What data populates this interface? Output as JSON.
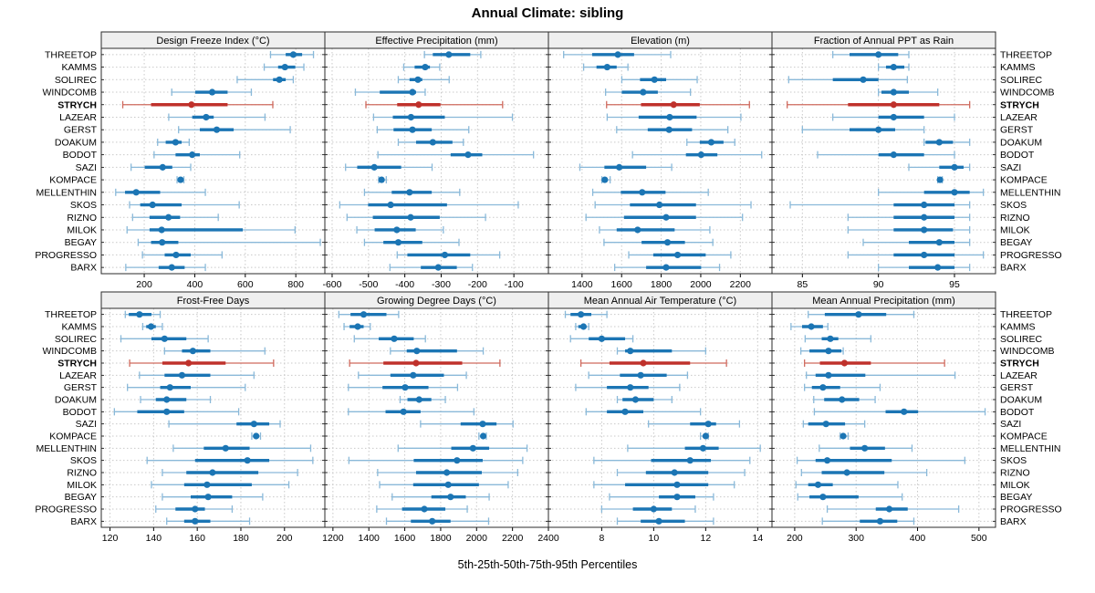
{
  "title": "Annual Climate: sibling",
  "xlabel": "5th-25th-50th-75th-95th Percentiles",
  "colors": {
    "blue": "#1b75b4",
    "blue_light": "#8ab9d9",
    "red": "#bf312b",
    "red_light": "#cf6a5e",
    "header_bg": "#efefef",
    "grid": "#c9c9c9",
    "border": "#2b2b2b",
    "text": "#000000"
  },
  "chart_data": {
    "type": "scatter",
    "subtype": "multi-panel percentile dotplot (whisker=5th-95th, bar=25th-75th, dot=50th)",
    "title": "Annual Climate: sibling",
    "xlabel": "5th-25th-50th-75th-95th Percentiles",
    "legend_position": "none",
    "grid": "dashed",
    "percentiles": [
      5,
      25,
      50,
      75,
      95
    ],
    "highlight_site": "STRYCH",
    "sites": [
      "THREETOP",
      "KAMMS",
      "SOLIREC",
      "WINDCOMB",
      "STRYCH",
      "LAZEAR",
      "GERST",
      "DOAKUM",
      "BODOT",
      "SAZI",
      "KOMPACE",
      "MELLENTHIN",
      "SKOS",
      "RIZNO",
      "MILOK",
      "BEGAY",
      "PROGRESSO",
      "BARX"
    ],
    "panels": [
      {
        "title": "Design Freeze Index (°C)",
        "row": 0,
        "col": 0,
        "xlim": [
          30,
          915
        ],
        "ticks": [
          200,
          400,
          600,
          800
        ],
        "values": [
          [
            700,
            760,
            790,
            825,
            870
          ],
          [
            675,
            730,
            757,
            798,
            832
          ],
          [
            568,
            710,
            735,
            760,
            790
          ],
          [
            309,
            402,
            469,
            530,
            624
          ],
          [
            115,
            227,
            387,
            530,
            709
          ],
          [
            297,
            390,
            445,
            475,
            678
          ],
          [
            336,
            420,
            487,
            554,
            778
          ],
          [
            253,
            285,
            324,
            348,
            378
          ],
          [
            239,
            324,
            390,
            420,
            578
          ],
          [
            148,
            202,
            273,
            311,
            384
          ],
          [
            330,
            338,
            344,
            350,
            357
          ],
          [
            87,
            124,
            168,
            263,
            442
          ],
          [
            142,
            184,
            233,
            348,
            576
          ],
          [
            154,
            221,
            296,
            342,
            493
          ],
          [
            132,
            221,
            269,
            590,
            797
          ],
          [
            176,
            227,
            271,
            335,
            897
          ],
          [
            193,
            281,
            326,
            384,
            508
          ],
          [
            127,
            257,
            309,
            360,
            442
          ]
        ]
      },
      {
        "title": "Effective Precipitation (mm)",
        "row": 0,
        "col": 1,
        "xlim": [
          -620,
          -5
        ],
        "ticks": [
          -600,
          -500,
          -400,
          -300,
          -200,
          -100
        ],
        "values": [
          [
            -346,
            -323,
            -279,
            -220,
            -191
          ],
          [
            -403,
            -373,
            -344,
            -331,
            -304
          ],
          [
            -418,
            -387,
            -364,
            -352,
            -278
          ],
          [
            -536,
            -469,
            -379,
            -369,
            -344
          ],
          [
            -507,
            -421,
            -362,
            -302,
            -131
          ],
          [
            -486,
            -433,
            -383,
            -290,
            -104
          ],
          [
            -476,
            -431,
            -379,
            -326,
            -224
          ],
          [
            -418,
            -369,
            -323,
            -269,
            -239
          ],
          [
            -474,
            -274,
            -226,
            -187,
            -46
          ],
          [
            -563,
            -531,
            -484,
            -410,
            -325
          ],
          [
            -472,
            -468,
            -464,
            -458,
            -451
          ],
          [
            -511,
            -436,
            -387,
            -326,
            -249
          ],
          [
            -579,
            -501,
            -439,
            -284,
            -88
          ],
          [
            -559,
            -488,
            -384,
            -304,
            -178
          ],
          [
            -532,
            -483,
            -422,
            -370,
            -294
          ],
          [
            -511,
            -459,
            -418,
            -352,
            -251
          ],
          [
            -421,
            -393,
            -290,
            -220,
            -139
          ],
          [
            -441,
            -356,
            -308,
            -257,
            -214
          ]
        ]
      },
      {
        "title": "Elevation (m)",
        "row": 0,
        "col": 2,
        "xlim": [
          1230,
          2360
        ],
        "ticks": [
          1400,
          1600,
          1800,
          2000,
          2200
        ],
        "values": [
          [
            1307,
            1451,
            1581,
            1663,
            1848
          ],
          [
            1408,
            1473,
            1527,
            1575,
            1632
          ],
          [
            1601,
            1693,
            1766,
            1825,
            1982
          ],
          [
            1519,
            1601,
            1709,
            1783,
            1948
          ],
          [
            1524,
            1698,
            1863,
            1995,
            2246
          ],
          [
            1527,
            1686,
            1843,
            1979,
            2203
          ],
          [
            1575,
            1732,
            1840,
            1956,
            2137
          ],
          [
            1930,
            1995,
            2053,
            2115,
            2172
          ],
          [
            1655,
            1925,
            2002,
            2084,
            2308
          ],
          [
            1389,
            1513,
            1588,
            1724,
            1853
          ],
          [
            1500,
            1508,
            1515,
            1528,
            1542
          ],
          [
            1454,
            1596,
            1704,
            1822,
            2038
          ],
          [
            1466,
            1642,
            1791,
            1976,
            2254
          ],
          [
            1420,
            1612,
            1825,
            1976,
            2211
          ],
          [
            1488,
            1575,
            1681,
            1868,
            2046
          ],
          [
            1511,
            1701,
            1832,
            1920,
            2061
          ],
          [
            1636,
            1760,
            1883,
            2025,
            2152
          ],
          [
            1565,
            1724,
            1825,
            2002,
            2095
          ]
        ]
      },
      {
        "title": "Fraction of Annual PPT as Rain",
        "row": 0,
        "col": 3,
        "xlim": [
          83,
          97.7
        ],
        "ticks": [
          85,
          90,
          95
        ],
        "values": [
          [
            87.0,
            88.1,
            90.0,
            91.3,
            92.0
          ],
          [
            90.0,
            90.5,
            91.0,
            91.7,
            92.0
          ],
          [
            84.1,
            87.0,
            89.0,
            90.0,
            91.9
          ],
          [
            90.0,
            90.2,
            91.0,
            92.0,
            93.9
          ],
          [
            84.0,
            88.0,
            91.0,
            94.0,
            96.0
          ],
          [
            87.0,
            90.0,
            91.0,
            93.0,
            95.0
          ],
          [
            85.0,
            88.1,
            90.0,
            91.1,
            93.0
          ],
          [
            93.0,
            93.1,
            94.0,
            94.9,
            96.0
          ],
          [
            86.0,
            90.0,
            91.0,
            93.0,
            95.0
          ],
          [
            92.0,
            94.0,
            95.0,
            95.6,
            96.0
          ],
          [
            93.9,
            94.0,
            94.05,
            94.1,
            94.2
          ],
          [
            90.0,
            93.0,
            95.0,
            96.0,
            96.9
          ],
          [
            84.2,
            91.0,
            93.0,
            95.0,
            96.0
          ],
          [
            88.0,
            91.0,
            93.0,
            95.0,
            96.0
          ],
          [
            88.0,
            91.0,
            93.0,
            94.9,
            96.0
          ],
          [
            89.0,
            92.0,
            94.0,
            95.0,
            96.0
          ],
          [
            88.0,
            91.0,
            93.0,
            95.0,
            96.9
          ],
          [
            90.0,
            92.0,
            93.9,
            95.0,
            96.0
          ]
        ]
      },
      {
        "title": "Frost-Free Days",
        "row": 1,
        "col": 0,
        "xlim": [
          116,
          218.5
        ],
        "ticks": [
          120,
          140,
          160,
          180,
          200
        ],
        "values": [
          [
            127,
            128.6,
            133.5,
            139,
            143
          ],
          [
            135,
            136.6,
            138.8,
            141,
            144
          ],
          [
            125,
            139,
            145,
            155,
            165
          ],
          [
            145,
            153,
            158,
            166,
            191
          ],
          [
            129,
            144,
            156,
            173,
            195
          ],
          [
            133.5,
            145,
            153,
            166,
            186
          ],
          [
            128,
            143,
            147.5,
            157,
            182
          ],
          [
            134,
            141,
            146,
            155,
            166
          ],
          [
            122,
            132.5,
            146,
            154,
            179
          ],
          [
            147,
            178,
            186,
            193,
            198
          ],
          [
            185,
            186,
            187,
            188,
            189
          ],
          [
            149,
            163,
            173,
            184,
            212
          ],
          [
            137,
            159,
            183,
            193,
            213
          ],
          [
            144,
            155,
            167,
            188,
            206
          ],
          [
            139,
            154,
            164.5,
            185,
            202
          ],
          [
            144,
            157,
            165,
            176,
            190
          ],
          [
            141,
            150,
            159,
            163.5,
            176
          ],
          [
            146,
            154,
            159,
            166,
            184
          ]
        ]
      },
      {
        "title": "Growing Degree Days (°C)",
        "row": 1,
        "col": 1,
        "xlim": [
          1155,
          2400
        ],
        "ticks": [
          1200,
          1400,
          1600,
          1800,
          2000,
          2200,
          2400
        ],
        "values": [
          [
            1233,
            1298,
            1371,
            1498,
            1566
          ],
          [
            1262,
            1293,
            1338,
            1371,
            1408
          ],
          [
            1319,
            1455,
            1541,
            1650,
            1715
          ],
          [
            1520,
            1611,
            1667,
            1891,
            2037
          ],
          [
            1293,
            1481,
            1663,
            1920,
            2130
          ],
          [
            1342,
            1520,
            1647,
            1818,
            1943
          ],
          [
            1286,
            1476,
            1602,
            1732,
            1894
          ],
          [
            1574,
            1615,
            1680,
            1748,
            1826
          ],
          [
            1286,
            1493,
            1593,
            1688,
            1985
          ],
          [
            1688,
            1911,
            2034,
            2111,
            2203
          ],
          [
            2013,
            2025,
            2037,
            2046,
            2054
          ],
          [
            1563,
            1859,
            1980,
            2070,
            2281
          ],
          [
            1289,
            1650,
            1891,
            2034,
            2257
          ],
          [
            1449,
            1663,
            1834,
            2029,
            2229
          ],
          [
            1460,
            1647,
            1842,
            2013,
            2176
          ],
          [
            1530,
            1748,
            1855,
            1940,
            2070
          ],
          [
            1444,
            1585,
            1709,
            1826,
            1948
          ],
          [
            1498,
            1634,
            1753,
            1855,
            2067
          ]
        ]
      },
      {
        "title": "Mean Annual Air Temperature (°C)",
        "row": 1,
        "col": 2,
        "xlim": [
          5.95,
          14.55
        ],
        "ticks": [
          8,
          10,
          12,
          14
        ],
        "values": [
          [
            6.6,
            6.8,
            7.2,
            7.6,
            8.2
          ],
          [
            7.0,
            7.1,
            7.3,
            7.4,
            7.5
          ],
          [
            6.8,
            7.5,
            8.0,
            8.9,
            9.2
          ],
          [
            8.6,
            8.9,
            9.1,
            10.7,
            12.0
          ],
          [
            7.2,
            8.3,
            9.6,
            11.4,
            12.8
          ],
          [
            7.5,
            8.7,
            9.5,
            10.5,
            11.3
          ],
          [
            7.0,
            8.2,
            9.1,
            9.8,
            11.0
          ],
          [
            8.6,
            8.8,
            9.3,
            10.0,
            10.7
          ],
          [
            7.4,
            8.2,
            8.9,
            9.6,
            11.8
          ],
          [
            9.8,
            11.4,
            12.1,
            12.4,
            13.3
          ],
          [
            11.8,
            11.9,
            12.0,
            12.05,
            12.1
          ],
          [
            9.0,
            11.2,
            11.9,
            12.5,
            14.1
          ],
          [
            7.7,
            9.9,
            11.4,
            12.2,
            13.7
          ],
          [
            8.6,
            9.7,
            10.8,
            12.1,
            13.5
          ],
          [
            7.7,
            8.9,
            10.9,
            12.1,
            13.1
          ],
          [
            8.3,
            10.2,
            10.9,
            11.6,
            12.3
          ],
          [
            8.0,
            9.2,
            10.0,
            10.7,
            11.6
          ],
          [
            8.6,
            9.5,
            10.2,
            11.2,
            12.3
          ]
        ]
      },
      {
        "title": "Mean Annual Precipitation (mm)",
        "row": 1,
        "col": 3,
        "xlim": [
          163,
          527
        ],
        "ticks": [
          200,
          300,
          400,
          500
        ],
        "values": [
          [
            222,
            249,
            304,
            349,
            394
          ],
          [
            194,
            212,
            227,
            246,
            254
          ],
          [
            217,
            244,
            258,
            271,
            324
          ],
          [
            210,
            224,
            255,
            276,
            279
          ],
          [
            216,
            241,
            281,
            324,
            444
          ],
          [
            219,
            234,
            255,
            315,
            461
          ],
          [
            216,
            228,
            246,
            274,
            339
          ],
          [
            231,
            248,
            277,
            305,
            331
          ],
          [
            232,
            348,
            378,
            401,
            510
          ],
          [
            214,
            222,
            251,
            282,
            314
          ],
          [
            274,
            277,
            279,
            283,
            287
          ],
          [
            240,
            290,
            314,
            347,
            391
          ],
          [
            204,
            234,
            253,
            358,
            477
          ],
          [
            211,
            244,
            285,
            346,
            415
          ],
          [
            202,
            222,
            238,
            262,
            368
          ],
          [
            205,
            224,
            246,
            304,
            375
          ],
          [
            253,
            332,
            354,
            384,
            467
          ],
          [
            245,
            306,
            339,
            367,
            394
          ]
        ]
      }
    ]
  }
}
